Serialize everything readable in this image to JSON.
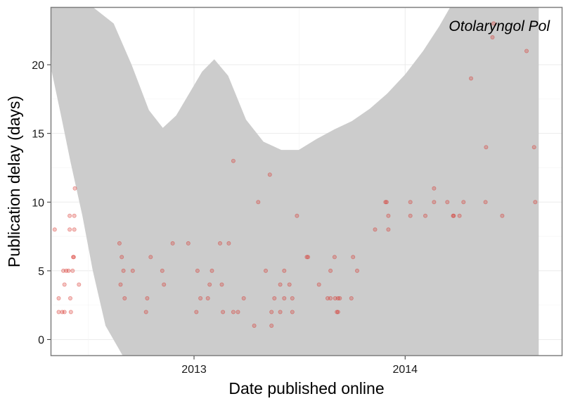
{
  "chart_data": {
    "type": "scatter",
    "panel_label": "Otolaryngol Pol",
    "xlabel": "Date published online",
    "ylabel": "Publication delay (days)",
    "xlim": [
      "2012-04-28",
      "2014-09-30"
    ],
    "ylim": [
      -1.2,
      24.2
    ],
    "x_ticks": [
      {
        "date": "2013-01-01",
        "label": "2013"
      },
      {
        "date": "2014-01-01",
        "label": "2014"
      }
    ],
    "y_ticks": [
      0,
      5,
      10,
      15,
      20
    ],
    "grid": true,
    "colors": {
      "points": "#d73027",
      "band": "#cccccc",
      "panel_border": "#7f7f7f",
      "grid": "#ebebeb"
    },
    "band": {
      "description_free": true,
      "upper": [
        [
          "2012-06-22",
          24.2
        ],
        [
          "2012-07-10",
          24.2
        ],
        [
          "2012-08-15",
          23.0
        ],
        [
          "2012-09-15",
          20.0
        ],
        [
          "2012-10-15",
          16.7
        ],
        [
          "2012-11-08",
          15.4
        ],
        [
          "2012-12-01",
          16.3
        ],
        [
          "2013-01-15",
          19.5
        ],
        [
          "2013-02-05",
          20.4
        ],
        [
          "2013-03-01",
          19.2
        ],
        [
          "2013-04-01",
          16.0
        ],
        [
          "2013-05-01",
          14.4
        ],
        [
          "2013-06-01",
          13.8
        ],
        [
          "2013-07-01",
          13.8
        ],
        [
          "2013-08-01",
          14.6
        ],
        [
          "2013-09-01",
          15.3
        ],
        [
          "2013-10-01",
          15.9
        ],
        [
          "2013-11-01",
          16.8
        ],
        [
          "2013-12-01",
          17.9
        ],
        [
          "2014-01-01",
          19.3
        ],
        [
          "2014-02-01",
          21.0
        ],
        [
          "2014-03-01",
          22.8
        ],
        [
          "2014-03-20",
          24.2
        ],
        [
          "2014-08-20",
          24.2
        ]
      ],
      "lower": [
        [
          "2012-08-31",
          -1.2
        ],
        [
          "2012-08-01",
          1.0
        ],
        [
          "2012-07-10",
          5.0
        ],
        [
          "2012-06-22",
          9.0
        ],
        [
          "2012-06-01",
          13.0
        ],
        [
          "2012-05-15",
          16.5
        ],
        [
          "2012-04-30",
          19.5
        ],
        [
          "2012-04-28",
          24.2
        ]
      ],
      "end": [
        "2014-08-20",
        -1.2
      ]
    },
    "points": [
      {
        "x": "2012-05-05",
        "y": 8
      },
      {
        "x": "2012-05-12",
        "y": 3
      },
      {
        "x": "2012-05-12",
        "y": 2
      },
      {
        "x": "2012-05-18",
        "y": 2
      },
      {
        "x": "2012-05-20",
        "y": 5
      },
      {
        "x": "2012-05-22",
        "y": 4
      },
      {
        "x": "2012-05-22",
        "y": 2
      },
      {
        "x": "2012-05-25",
        "y": 5
      },
      {
        "x": "2012-05-29",
        "y": 5
      },
      {
        "x": "2012-05-31",
        "y": 8
      },
      {
        "x": "2012-05-31",
        "y": 9
      },
      {
        "x": "2012-06-01",
        "y": 3
      },
      {
        "x": "2012-06-02",
        "y": 2
      },
      {
        "x": "2012-06-05",
        "y": 5
      },
      {
        "x": "2012-06-06",
        "y": 6
      },
      {
        "x": "2012-06-07",
        "y": 6
      },
      {
        "x": "2012-06-08",
        "y": 9
      },
      {
        "x": "2012-06-08",
        "y": 8
      },
      {
        "x": "2012-06-09",
        "y": 11
      },
      {
        "x": "2012-06-16",
        "y": 4
      },
      {
        "x": "2012-08-25",
        "y": 7
      },
      {
        "x": "2012-08-27",
        "y": 4
      },
      {
        "x": "2012-08-29",
        "y": 6
      },
      {
        "x": "2012-09-01",
        "y": 5
      },
      {
        "x": "2012-09-03",
        "y": 3
      },
      {
        "x": "2012-09-17",
        "y": 5
      },
      {
        "x": "2012-10-10",
        "y": 2
      },
      {
        "x": "2012-10-12",
        "y": 3
      },
      {
        "x": "2012-10-18",
        "y": 6
      },
      {
        "x": "2012-11-07",
        "y": 5
      },
      {
        "x": "2012-11-10",
        "y": 4
      },
      {
        "x": "2012-11-25",
        "y": 7
      },
      {
        "x": "2012-12-22",
        "y": 7
      },
      {
        "x": "2013-01-05",
        "y": 2
      },
      {
        "x": "2013-01-07",
        "y": 5
      },
      {
        "x": "2013-01-12",
        "y": 3
      },
      {
        "x": "2013-01-25",
        "y": 3
      },
      {
        "x": "2013-01-28",
        "y": 4
      },
      {
        "x": "2013-02-01",
        "y": 5
      },
      {
        "x": "2013-02-15",
        "y": 7
      },
      {
        "x": "2013-02-18",
        "y": 4
      },
      {
        "x": "2013-02-20",
        "y": 2
      },
      {
        "x": "2013-03-02",
        "y": 7
      },
      {
        "x": "2013-03-10",
        "y": 13
      },
      {
        "x": "2013-03-10",
        "y": 2
      },
      {
        "x": "2013-03-18",
        "y": 2
      },
      {
        "x": "2013-03-28",
        "y": 3
      },
      {
        "x": "2013-04-15",
        "y": 1
      },
      {
        "x": "2013-04-22",
        "y": 10
      },
      {
        "x": "2013-05-05",
        "y": 5
      },
      {
        "x": "2013-05-12",
        "y": 12
      },
      {
        "x": "2013-05-15",
        "y": 1
      },
      {
        "x": "2013-05-15",
        "y": 2
      },
      {
        "x": "2013-05-20",
        "y": 3
      },
      {
        "x": "2013-05-30",
        "y": 4
      },
      {
        "x": "2013-05-30",
        "y": 2
      },
      {
        "x": "2013-06-06",
        "y": 5
      },
      {
        "x": "2013-06-06",
        "y": 3
      },
      {
        "x": "2013-06-15",
        "y": 4
      },
      {
        "x": "2013-06-20",
        "y": 3
      },
      {
        "x": "2013-06-20",
        "y": 2
      },
      {
        "x": "2013-06-28",
        "y": 9
      },
      {
        "x": "2013-07-15",
        "y": 6
      },
      {
        "x": "2013-07-17",
        "y": 6
      },
      {
        "x": "2013-08-05",
        "y": 4
      },
      {
        "x": "2013-08-20",
        "y": 3
      },
      {
        "x": "2013-08-25",
        "y": 5
      },
      {
        "x": "2013-08-25",
        "y": 3
      },
      {
        "x": "2013-09-01",
        "y": 6
      },
      {
        "x": "2013-09-02",
        "y": 3
      },
      {
        "x": "2013-09-05",
        "y": 2
      },
      {
        "x": "2013-09-07",
        "y": 3
      },
      {
        "x": "2013-09-07",
        "y": 2
      },
      {
        "x": "2013-09-10",
        "y": 3
      },
      {
        "x": "2013-09-30",
        "y": 3
      },
      {
        "x": "2013-10-03",
        "y": 6
      },
      {
        "x": "2013-10-10",
        "y": 5
      },
      {
        "x": "2013-11-10",
        "y": 8
      },
      {
        "x": "2013-11-28",
        "y": 10
      },
      {
        "x": "2013-11-30",
        "y": 10
      },
      {
        "x": "2013-12-03",
        "y": 9
      },
      {
        "x": "2013-12-03",
        "y": 8
      },
      {
        "x": "2014-01-10",
        "y": 10
      },
      {
        "x": "2014-01-10",
        "y": 9
      },
      {
        "x": "2014-02-05",
        "y": 9
      },
      {
        "x": "2014-02-20",
        "y": 11
      },
      {
        "x": "2014-02-20",
        "y": 10
      },
      {
        "x": "2014-03-15",
        "y": 10
      },
      {
        "x": "2014-03-25",
        "y": 9
      },
      {
        "x": "2014-03-26",
        "y": 9
      },
      {
        "x": "2014-04-05",
        "y": 9
      },
      {
        "x": "2014-04-12",
        "y": 10
      },
      {
        "x": "2014-04-25",
        "y": 19
      },
      {
        "x": "2014-05-20",
        "y": 10
      },
      {
        "x": "2014-05-21",
        "y": 14
      },
      {
        "x": "2014-06-01",
        "y": 22
      },
      {
        "x": "2014-06-03",
        "y": 23
      },
      {
        "x": "2014-06-18",
        "y": 9
      },
      {
        "x": "2014-07-30",
        "y": 21
      },
      {
        "x": "2014-08-12",
        "y": 14
      },
      {
        "x": "2014-08-14",
        "y": 10
      }
    ]
  }
}
